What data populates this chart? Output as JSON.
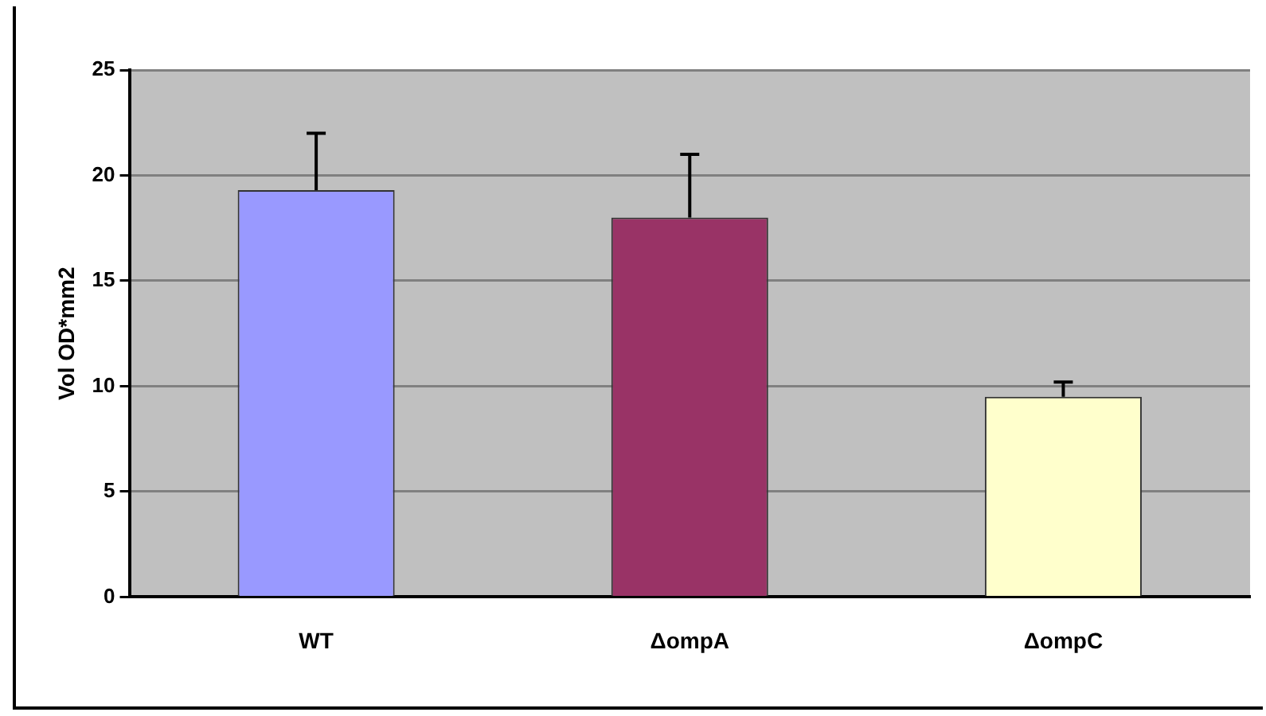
{
  "chart_data": {
    "type": "bar",
    "ylabel": "Vol OD*mm2",
    "categories": [
      "WT",
      "ΔompA",
      "ΔompC"
    ],
    "values": [
      19.3,
      18.0,
      9.5
    ],
    "colors": [
      "#9999ff",
      "#993366",
      "#ffffcc"
    ],
    "errors": [
      [
        19.3,
        22.0
      ],
      [
        18.0,
        21.0
      ],
      [
        9.5,
        10.2
      ]
    ],
    "ylim": [
      0,
      25
    ],
    "yticks": [
      0,
      5,
      10,
      15,
      20,
      25
    ],
    "grid": "y",
    "legend": false
  }
}
